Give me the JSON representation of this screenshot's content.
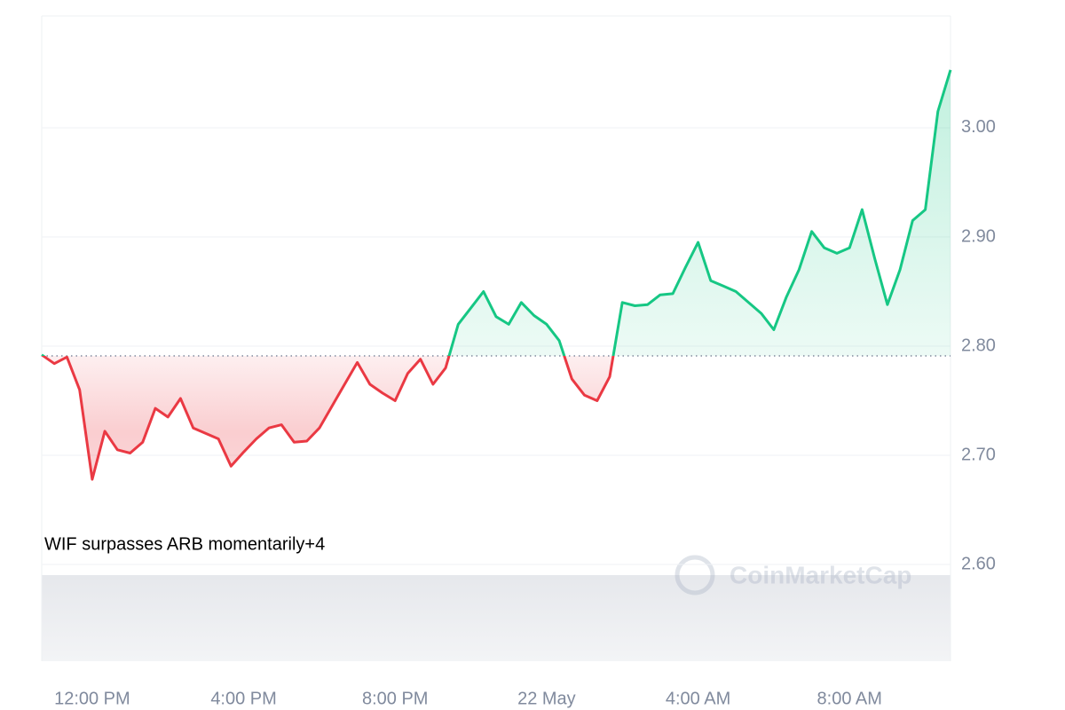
{
  "chart_data": {
    "type": "line",
    "categories": [
      null,
      null,
      null,
      null,
      "12:00 PM",
      null,
      null,
      null,
      null,
      null,
      null,
      null,
      null,
      null,
      null,
      null,
      "4:00 PM",
      null,
      null,
      null,
      null,
      null,
      null,
      null,
      null,
      null,
      null,
      null,
      "8:00 PM",
      null,
      null,
      null,
      null,
      null,
      null,
      null,
      null,
      null,
      null,
      null,
      "22 May",
      null,
      null,
      null,
      null,
      null,
      null,
      null,
      null,
      null,
      null,
      null,
      "4:00 AM",
      null,
      null,
      null,
      null,
      null,
      null,
      null,
      null,
      null,
      null,
      null,
      "8:00 AM",
      null,
      null,
      null,
      null,
      null,
      null,
      null,
      null
    ],
    "values": [
      2.792,
      2.784,
      2.79,
      2.76,
      2.678,
      2.722,
      2.705,
      2.702,
      2.712,
      2.743,
      2.735,
      2.752,
      2.725,
      2.72,
      2.715,
      2.69,
      2.703,
      2.715,
      2.725,
      2.728,
      2.712,
      2.713,
      2.725,
      2.745,
      2.765,
      2.785,
      2.765,
      2.757,
      2.75,
      2.775,
      2.788,
      2.765,
      2.78,
      2.82,
      2.835,
      2.85,
      2.827,
      2.82,
      2.84,
      2.828,
      2.82,
      2.805,
      2.77,
      2.755,
      2.75,
      2.772,
      2.84,
      2.837,
      2.838,
      2.847,
      2.848,
      2.872,
      2.895,
      2.86,
      2.855,
      2.85,
      2.84,
      2.83,
      2.815,
      2.845,
      2.87,
      2.905,
      2.89,
      2.885,
      2.89,
      2.925,
      2.88,
      2.838,
      2.87,
      2.915,
      2.925,
      3.015,
      3.053
    ],
    "baseline": 2.791,
    "up_color": "#16c784",
    "down_color": "#ea3943",
    "ylim": [
      2.5114,
      3.1024
    ],
    "yticks": [
      {
        "value": 2.6,
        "label": "2.60"
      },
      {
        "value": 2.7,
        "label": "2.70"
      },
      {
        "value": 2.8,
        "label": "2.80"
      },
      {
        "value": 2.9,
        "label": "2.90"
      },
      {
        "value": 3.0,
        "label": "3.00"
      }
    ],
    "yaxis_side": "right",
    "grid": true,
    "annotation": "WIF surpasses ARB momentarily+4",
    "watermark": "CoinMarketCap"
  }
}
